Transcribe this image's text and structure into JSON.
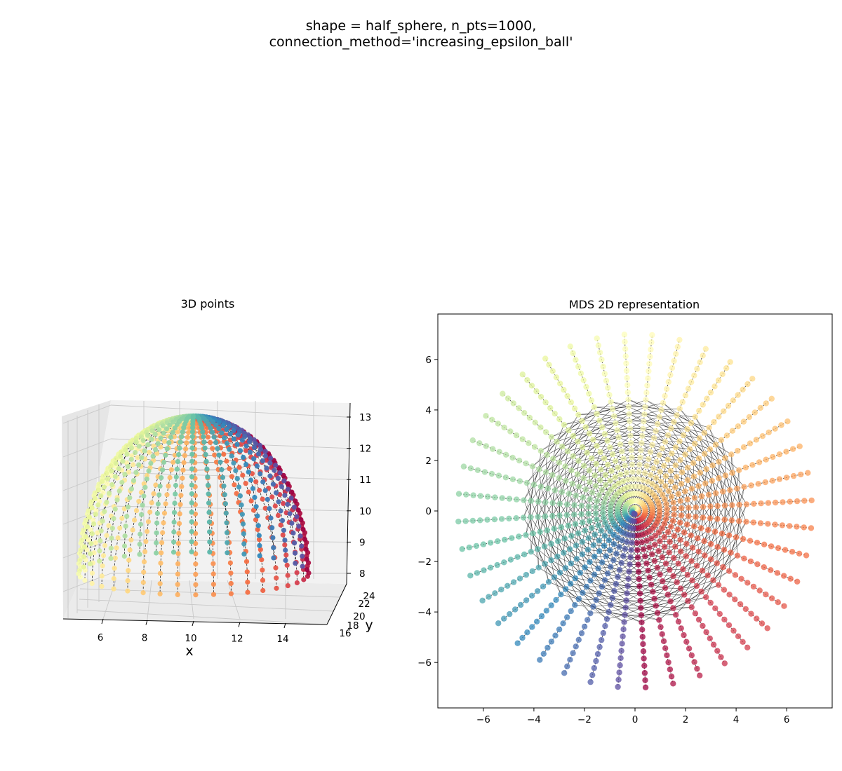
{
  "figure": {
    "suptitle_line1": "shape = half_sphere, n_pts=1000,",
    "suptitle_line2": "connection_method='increasing_epsilon_ball'"
  },
  "chart_data": [
    {
      "type": "scatter",
      "projection": "3d",
      "title": "3D points",
      "xlabel": "x",
      "ylabel": "y",
      "zlabel": "",
      "xlim": [
        4.5,
        15.5
      ],
      "ylim": [
        16,
        24
      ],
      "zlim": [
        7.6,
        13.2
      ],
      "x_ticks": [
        "6",
        "8",
        "10",
        "12",
        "14"
      ],
      "y_ticks": [
        "16",
        "18",
        "20",
        "22",
        "24"
      ],
      "z_ticks": [
        "8",
        "9",
        "10",
        "11",
        "12",
        "13"
      ],
      "colormap": "Spectral",
      "center": [
        10,
        20,
        8
      ],
      "radius": 5,
      "n_meridians": 40,
      "n_points_per_meridian": 25,
      "n_points": 1000,
      "edges": "black",
      "grid": true
    },
    {
      "type": "scatter",
      "title": "MDS 2D representation",
      "xlabel": "",
      "ylabel": "",
      "xlim": [
        -7.8,
        7.8
      ],
      "ylim": [
        -7.8,
        7.8
      ],
      "x_ticks": [
        "−6",
        "−4",
        "−2",
        "0",
        "2",
        "4",
        "6"
      ],
      "y_ticks": [
        "−6",
        "−4",
        "−2",
        "0",
        "2",
        "4",
        "6"
      ],
      "colormap": "Spectral",
      "n_rays": 40,
      "points_per_ray": 25,
      "max_radius": 7.0,
      "edge_region_radius": 4.35,
      "edges": "black",
      "grid": false
    }
  ]
}
